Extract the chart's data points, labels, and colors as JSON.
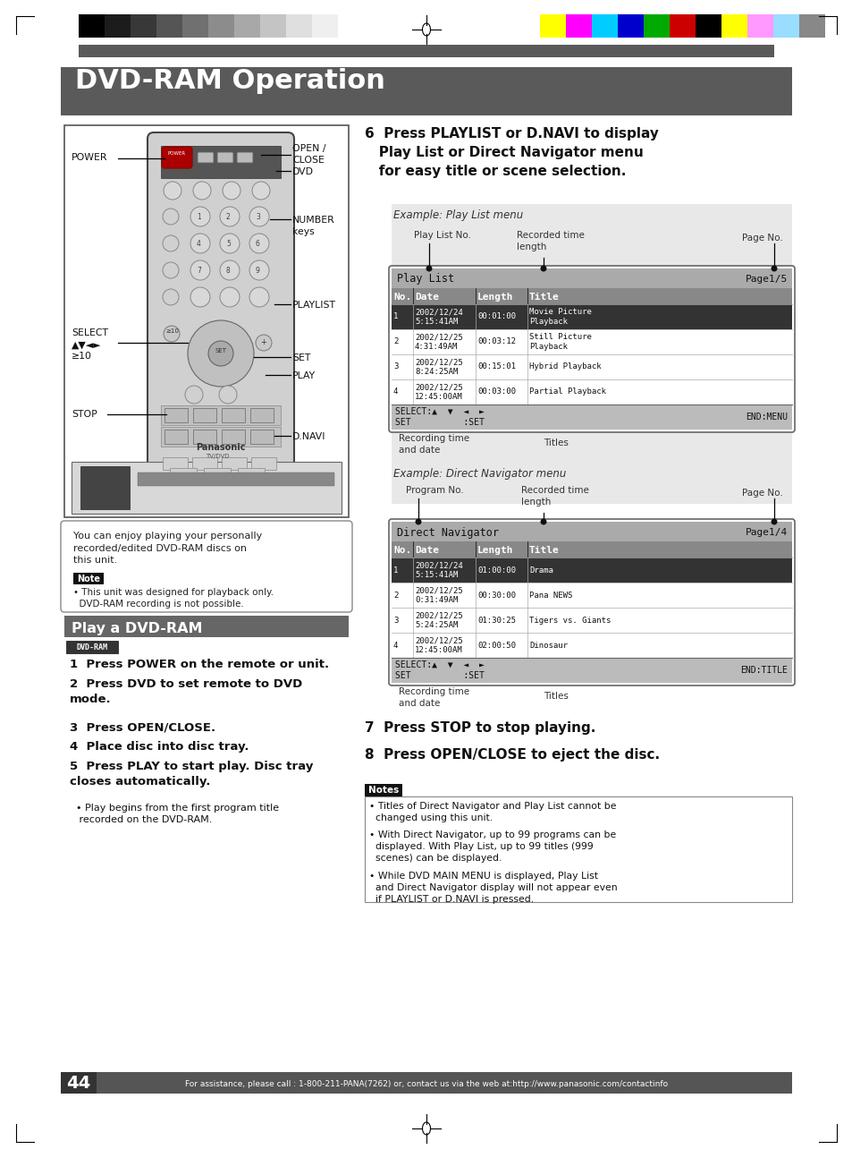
{
  "title": "DVD-RAM Operation",
  "title_bg": "#5a5a5a",
  "title_color": "#ffffff",
  "page_bg": "#ffffff",
  "section_title": "Play a DVD-RAM",
  "section_title_bg": "#666666",
  "section_title_color": "#ffffff",
  "note_text": "You can enjoy playing your personally\nrecorded/edited DVD-RAM discs on\nthis unit.",
  "note_bullet": "• This unit was designed for playback only.\n  DVD-RAM recording is not possible.",
  "step6": "6  Press PLAYLIST or D.NAVI to display\n   Play List or Direct Navigator menu\n   for easy title or scene selection.",
  "step7": "7  Press STOP to stop playing.",
  "step8": "8  Press OPEN/CLOSE to eject the disc.",
  "play_list_rows": [
    [
      "1",
      "2002/12/24\n5:15:41AM",
      "00:01:00",
      "Movie Picture\nPlayback"
    ],
    [
      "2",
      "2002/12/25\n4:31:49AM",
      "00:03:12",
      "Still Picture\nPlayback"
    ],
    [
      "3",
      "2002/12/25\n8:24:25AM",
      "00:15:01",
      "Hybrid Playback"
    ],
    [
      "4",
      "2002/12/25\n12:45:00AM",
      "00:03:00",
      "Partial Playback"
    ]
  ],
  "dn_rows": [
    [
      "1",
      "2002/12/24\n5:15:41AM",
      "01:00:00",
      "Drama"
    ],
    [
      "2",
      "2002/12/25\n0:31:49AM",
      "00:30:00",
      "Pana NEWS"
    ],
    [
      "3",
      "2002/12/25\n5:24:25AM",
      "01:30:25",
      "Tigers vs. Giants"
    ],
    [
      "4",
      "2002/12/25\n12:45:00AM",
      "02:00:50",
      "Dinosaur"
    ]
  ],
  "notes_items": [
    "• Titles of Direct Navigator and Play List cannot be\n  changed using this unit.",
    "• With Direct Navigator, up to 99 programs can be\n  displayed. With Play List, up to 99 titles (999\n  scenes) can be displayed.",
    "• While DVD MAIN MENU is displayed, Play List\n  and Direct Navigator display will not appear even\n  if PLAYLIST or D.NAVI is pressed."
  ],
  "footer_text": "For assistance, please call : 1-800-211-PANA(7262) or, contact us via the web at:http://www.panasonic.com/contactinfo",
  "page_number": "44",
  "grayscale_colors": [
    "#000000",
    "#1c1c1c",
    "#383838",
    "#555555",
    "#707070",
    "#8c8c8c",
    "#a8a8a8",
    "#c4c4c4",
    "#dfdfdf",
    "#efefef",
    "#ffffff"
  ],
  "color_bars": [
    "#ffff00",
    "#ff00ff",
    "#00ccff",
    "#0000cc",
    "#00aa00",
    "#cc0000",
    "#000000",
    "#ffff00",
    "#ff99ff",
    "#99ddff",
    "#888888"
  ]
}
